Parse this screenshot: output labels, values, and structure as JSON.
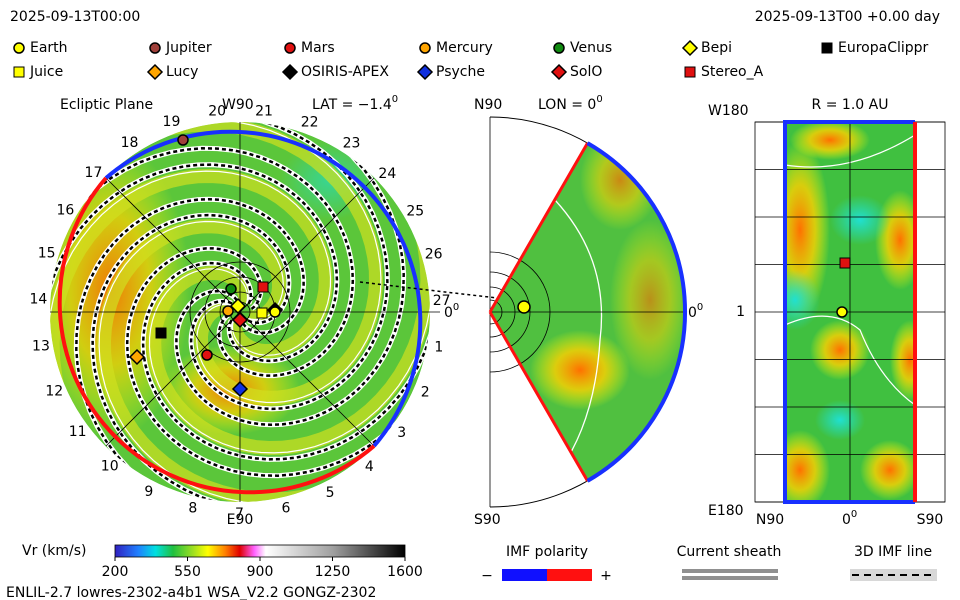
{
  "header": {
    "left": "2025-09-13T00:00",
    "right": "2025-09-13T00 +0.00 day"
  },
  "legend": [
    {
      "label": "Earth",
      "shape": "circle",
      "color": "#ffff00"
    },
    {
      "label": "Jupiter",
      "shape": "circle",
      "color": "#a0403a"
    },
    {
      "label": "Mars",
      "shape": "circle",
      "color": "#e01010"
    },
    {
      "label": "Mercury",
      "shape": "circle",
      "color": "#ffa500"
    },
    {
      "label": "Venus",
      "shape": "circle",
      "color": "#108a10"
    },
    {
      "label": "Bepi",
      "shape": "diamond",
      "color": "#ffff00"
    },
    {
      "label": "EuropaClippr",
      "shape": "square",
      "color": "#000000"
    },
    {
      "label": "Juice",
      "shape": "square",
      "color": "#ffff00"
    },
    {
      "label": "Lucy",
      "shape": "diamond",
      "color": "#ffa500"
    },
    {
      "label": "OSIRIS-APEX",
      "shape": "diamond",
      "color": "#000000"
    },
    {
      "label": "Psyche",
      "shape": "diamond",
      "color": "#1030e0"
    },
    {
      "label": "SolO",
      "shape": "diamond",
      "color": "#e01010"
    },
    {
      "label": "Stereo_A",
      "shape": "square",
      "color": "#e01010"
    }
  ],
  "ecliptic": {
    "title": "Ecliptic Plane",
    "top": "W90",
    "lat": "LAT = −1.4",
    "lat_sup": "0",
    "bottom": "E90",
    "right": "0",
    "right_sup": "0",
    "sectors": [
      "1",
      "2",
      "3",
      "4",
      "5",
      "6",
      "7",
      "8",
      "9",
      "10",
      "11",
      "12",
      "13",
      "14",
      "15",
      "16",
      "17",
      "18",
      "19",
      "20",
      "21",
      "22",
      "23",
      "24",
      "25",
      "26",
      "27"
    ]
  },
  "meridional": {
    "top": "N90",
    "lon": "LON = 0",
    "lon_sup": "0",
    "bottom": "S90",
    "right": "0",
    "right_sup": "0"
  },
  "sphere": {
    "top_left": "W180",
    "title": "R = 1.0 AU",
    "bottom_left": "E180",
    "x_left": "N90",
    "x_mid": "0",
    "x_mid_sup": "0",
    "x_right": "S90",
    "y_mid": "1"
  },
  "colorbar": {
    "label": "Vr (km/s)",
    "range": [
      200,
      1600
    ],
    "ticks": [
      200,
      550,
      900,
      1250,
      1600
    ]
  },
  "imf": {
    "title": "IMF polarity",
    "minus": "−",
    "plus": "+",
    "sheath": "Current sheath",
    "line3d": "3D IMF line"
  },
  "footer": "ENLIL-2.7 lowres-2302-a4b1 WSA_V2.2 GONGZ-2302"
}
